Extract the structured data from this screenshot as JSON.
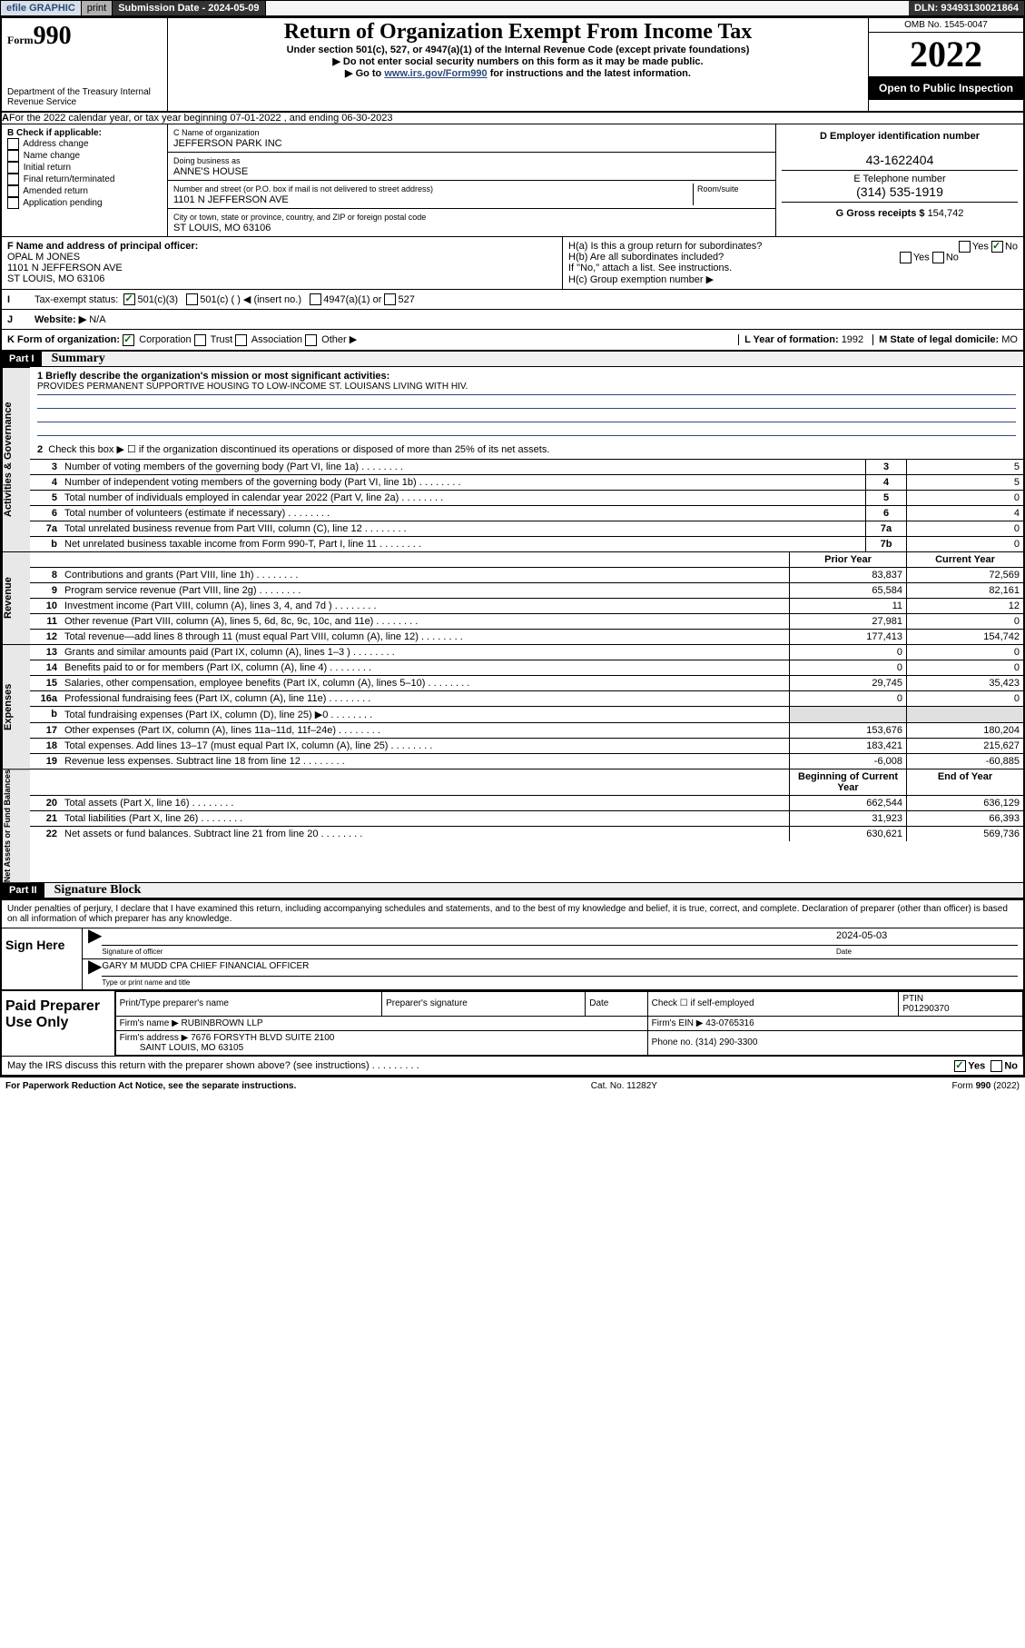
{
  "top": {
    "efile": "efile GRAPHIC",
    "print": "print",
    "submission": "Submission Date - 2024-05-09",
    "dln": "DLN: 93493130021864"
  },
  "header": {
    "form_prefix": "Form",
    "form_num": "990",
    "dept": "Department of the Treasury Internal Revenue Service",
    "title": "Return of Organization Exempt From Income Tax",
    "sub1": "Under section 501(c), 527, or 4947(a)(1) of the Internal Revenue Code (except private foundations)",
    "sub2": "▶ Do not enter social security numbers on this form as it may be made public.",
    "sub3_pre": "▶ Go to ",
    "sub3_link": "www.irs.gov/Form990",
    "sub3_post": " for instructions and the latest information.",
    "omb": "OMB No. 1545-0047",
    "year": "2022",
    "open": "Open to Public Inspection"
  },
  "a_line": "For the 2022 calendar year, or tax year beginning 07-01-2022   , and ending 06-30-2023",
  "b": {
    "label": "B Check if applicable:",
    "opts": [
      "Address change",
      "Name change",
      "Initial return",
      "Final return/terminated",
      "Amended return",
      "Application pending"
    ]
  },
  "c": {
    "name_label": "C Name of organization",
    "name": "JEFFERSON PARK INC",
    "dba_label": "Doing business as",
    "dba": "ANNE'S HOUSE",
    "addr_label": "Number and street (or P.O. box if mail is not delivered to street address)",
    "room_label": "Room/suite",
    "addr": "1101 N JEFFERSON AVE",
    "city_label": "City or town, state or province, country, and ZIP or foreign postal code",
    "city": "ST LOUIS, MO  63106"
  },
  "d": {
    "label": "D Employer identification number",
    "val": "43-1622404"
  },
  "e": {
    "label": "E Telephone number",
    "val": "(314) 535-1919"
  },
  "g": {
    "label": "G Gross receipts $",
    "val": "154,742"
  },
  "f": {
    "label": "F Name and address of principal officer:",
    "name": "OPAL M JONES",
    "addr1": "1101 N JEFFERSON AVE",
    "addr2": "ST LOUIS, MO  63106"
  },
  "h": {
    "ha": "H(a)  Is this a group return for subordinates?",
    "hb": "H(b)  Are all subordinates included?",
    "hb_note": "If \"No,\" attach a list. See instructions.",
    "hc": "H(c)  Group exemption number ▶"
  },
  "i": {
    "label": "Tax-exempt status:",
    "c3": "501(c)(3)",
    "cother": "501(c) (  ) ◀ (insert no.)",
    "a1": "4947(a)(1) or",
    "s527": "527"
  },
  "j": {
    "label": "Website: ▶",
    "val": "N/A"
  },
  "k": {
    "label": "K Form of organization:",
    "corp": "Corporation",
    "trust": "Trust",
    "assoc": "Association",
    "other": "Other ▶"
  },
  "l": {
    "label": "L Year of formation:",
    "val": "1992"
  },
  "m": {
    "label": "M State of legal domicile:",
    "val": "MO"
  },
  "part1": {
    "hdr": "Part I",
    "title": "Summary"
  },
  "mission_label": "1  Briefly describe the organization's mission or most significant activities:",
  "mission": "PROVIDES PERMANENT SUPPORTIVE HOUSING TO LOW-INCOME ST. LOUISANS LIVING WITH HIV.",
  "line2": "Check this box ▶ ☐  if the organization discontinued its operations or disposed of more than 25% of its net assets.",
  "gov_rows": [
    {
      "n": "3",
      "t": "Number of voting members of the governing body (Part VI, line 1a)",
      "ln": "3",
      "v": "5"
    },
    {
      "n": "4",
      "t": "Number of independent voting members of the governing body (Part VI, line 1b)",
      "ln": "4",
      "v": "5"
    },
    {
      "n": "5",
      "t": "Total number of individuals employed in calendar year 2022 (Part V, line 2a)",
      "ln": "5",
      "v": "0"
    },
    {
      "n": "6",
      "t": "Total number of volunteers (estimate if necessary)",
      "ln": "6",
      "v": "4"
    },
    {
      "n": "7a",
      "t": "Total unrelated business revenue from Part VIII, column (C), line 12",
      "ln": "7a",
      "v": "0"
    },
    {
      "n": "b",
      "t": "Net unrelated business taxable income from Form 990-T, Part I, line 11",
      "ln": "7b",
      "v": "0"
    }
  ],
  "twocol_head": {
    "py": "Prior Year",
    "cy": "Current Year"
  },
  "rev_rows": [
    {
      "n": "8",
      "t": "Contributions and grants (Part VIII, line 1h)",
      "py": "83,837",
      "cy": "72,569"
    },
    {
      "n": "9",
      "t": "Program service revenue (Part VIII, line 2g)",
      "py": "65,584",
      "cy": "82,161"
    },
    {
      "n": "10",
      "t": "Investment income (Part VIII, column (A), lines 3, 4, and 7d )",
      "py": "11",
      "cy": "12"
    },
    {
      "n": "11",
      "t": "Other revenue (Part VIII, column (A), lines 5, 6d, 8c, 9c, 10c, and 11e)",
      "py": "27,981",
      "cy": "0"
    },
    {
      "n": "12",
      "t": "Total revenue—add lines 8 through 11 (must equal Part VIII, column (A), line 12)",
      "py": "177,413",
      "cy": "154,742"
    }
  ],
  "exp_rows": [
    {
      "n": "13",
      "t": "Grants and similar amounts paid (Part IX, column (A), lines 1–3 )",
      "py": "0",
      "cy": "0"
    },
    {
      "n": "14",
      "t": "Benefits paid to or for members (Part IX, column (A), line 4)",
      "py": "0",
      "cy": "0"
    },
    {
      "n": "15",
      "t": "Salaries, other compensation, employee benefits (Part IX, column (A), lines 5–10)",
      "py": "29,745",
      "cy": "35,423"
    },
    {
      "n": "16a",
      "t": "Professional fundraising fees (Part IX, column (A), line 11e)",
      "py": "0",
      "cy": "0"
    },
    {
      "n": "b",
      "t": "Total fundraising expenses (Part IX, column (D), line 25) ▶0",
      "py": "shade",
      "cy": "shade"
    },
    {
      "n": "17",
      "t": "Other expenses (Part IX, column (A), lines 11a–11d, 11f–24e)",
      "py": "153,676",
      "cy": "180,204"
    },
    {
      "n": "18",
      "t": "Total expenses. Add lines 13–17 (must equal Part IX, column (A), line 25)",
      "py": "183,421",
      "cy": "215,627"
    },
    {
      "n": "19",
      "t": "Revenue less expenses. Subtract line 18 from line 12",
      "py": "-6,008",
      "cy": "-60,885"
    }
  ],
  "net_head": {
    "py": "Beginning of Current Year",
    "cy": "End of Year"
  },
  "net_rows": [
    {
      "n": "20",
      "t": "Total assets (Part X, line 16)",
      "py": "662,544",
      "cy": "636,129"
    },
    {
      "n": "21",
      "t": "Total liabilities (Part X, line 26)",
      "py": "31,923",
      "cy": "66,393"
    },
    {
      "n": "22",
      "t": "Net assets or fund balances. Subtract line 21 from line 20",
      "py": "630,621",
      "cy": "569,736"
    }
  ],
  "part2": {
    "hdr": "Part II",
    "title": "Signature Block"
  },
  "penalty": "Under penalties of perjury, I declare that I have examined this return, including accompanying schedules and statements, and to the best of my knowledge and belief, it is true, correct, and complete. Declaration of preparer (other than officer) is based on all information of which preparer has any knowledge.",
  "sign": {
    "here": "Sign Here",
    "sig_label": "Signature of officer",
    "date": "2024-05-03",
    "date_label": "Date",
    "name": "GARY M MUDD CPA  CHIEF FINANCIAL OFFICER",
    "name_label": "Type or print name and title"
  },
  "prep": {
    "title": "Paid Preparer Use Only",
    "h1": "Print/Type preparer's name",
    "h2": "Preparer's signature",
    "h3": "Date",
    "check": "Check ☐ if self-employed",
    "ptin_l": "PTIN",
    "ptin": "P01290370",
    "firm_l": "Firm's name   ▶",
    "firm": "RUBINBROWN LLP",
    "ein_l": "Firm's EIN ▶",
    "ein": "43-0765316",
    "addr_l": "Firm's address ▶",
    "addr1": "7676 FORSYTH BLVD SUITE 2100",
    "addr2": "SAINT LOUIS, MO  63105",
    "phone_l": "Phone no.",
    "phone": "(314) 290-3300"
  },
  "discuss": "May the IRS discuss this return with the preparer shown above? (see instructions)",
  "footer": {
    "l": "For Paperwork Reduction Act Notice, see the separate instructions.",
    "m": "Cat. No. 11282Y",
    "r": "Form 990 (2022)"
  }
}
